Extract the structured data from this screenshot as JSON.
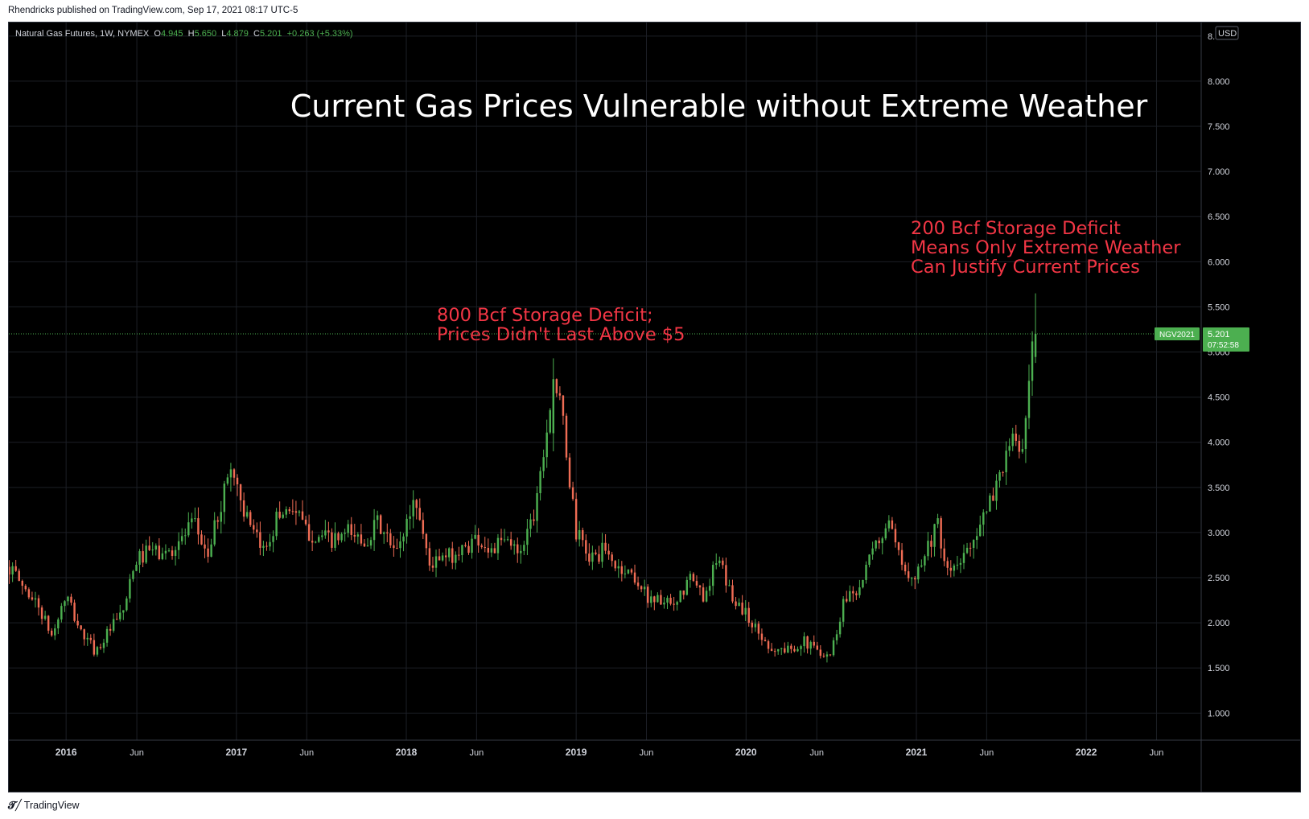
{
  "published_line": "Rhendricks published on TradingView.com, Sep 17, 2021 08:17 UTC-5",
  "footer": {
    "logo_icon": "tradingview-logo-icon",
    "label": "TradingView"
  },
  "legend": {
    "symbol": "Natural Gas Futures, 1W, NYMEX",
    "o_label": "O",
    "o": "4.945",
    "h_label": "H",
    "h": "5.650",
    "l_label": "L",
    "l": "4.879",
    "c_label": "C",
    "c": "5.201",
    "change": "+0.263 (+5.33%)"
  },
  "colors": {
    "background": "#000000",
    "grid": "#1c1f26",
    "up": "#4caf50",
    "down": "#ef6c54",
    "annotation": "#f23645",
    "price_label": "#4caf50",
    "title": "#ffffff"
  },
  "chart_data": {
    "type": "candlestick",
    "title": "Current Gas Prices Vulnerable without Extreme Weather",
    "symbol": "Natural Gas Futures, 1W, NYMEX",
    "currency": "USD",
    "x_tick_labels": [
      "2016",
      "Jun",
      "2017",
      "Jun",
      "2018",
      "Jun",
      "2019",
      "Jun",
      "2020",
      "Jun",
      "2021",
      "Jun",
      "2022",
      "Jun"
    ],
    "x_ticks": [
      {
        "label": "2016",
        "date": "2016-01-01"
      },
      {
        "label": "Jun",
        "date": "2016-06-01"
      },
      {
        "label": "2017",
        "date": "2017-01-01"
      },
      {
        "label": "Jun",
        "date": "2017-06-01"
      },
      {
        "label": "2018",
        "date": "2018-01-01"
      },
      {
        "label": "Jun",
        "date": "2018-06-01"
      },
      {
        "label": "2019",
        "date": "2019-01-01"
      },
      {
        "label": "Jun",
        "date": "2019-06-01"
      },
      {
        "label": "2020",
        "date": "2020-01-01"
      },
      {
        "label": "Jun",
        "date": "2020-06-01"
      },
      {
        "label": "2021",
        "date": "2021-01-01"
      },
      {
        "label": "Jun",
        "date": "2021-06-01"
      },
      {
        "label": "2022",
        "date": "2022-01-01"
      },
      {
        "label": "Jun",
        "date": "2022-06-01"
      }
    ],
    "x_range": [
      "2015-08-31",
      "2022-09-05"
    ],
    "y_tick_labels": [
      "1.000",
      "1.500",
      "2.000",
      "2.500",
      "3.000",
      "3.500",
      "4.000",
      "4.500",
      "5.000",
      "5.500",
      "6.000",
      "6.500",
      "7.000",
      "7.500",
      "8.000",
      "8."
    ],
    "y_ticks": [
      1.0,
      1.5,
      2.0,
      2.5,
      3.0,
      3.5,
      4.0,
      4.5,
      5.0,
      5.5,
      6.0,
      6.5,
      7.0,
      7.5,
      8.0,
      8.5
    ],
    "ylim": [
      0.7,
      8.65
    ],
    "grid": true,
    "last_price": {
      "symbol_tag": "NGV2021",
      "price": "5.201",
      "countdown": "07:52:58",
      "value": 5.201
    },
    "anchors": [
      {
        "date": "2015-09-01",
        "close": 2.62
      },
      {
        "date": "2015-10-01",
        "close": 2.4
      },
      {
        "date": "2015-11-01",
        "close": 2.2
      },
      {
        "date": "2015-12-01",
        "close": 1.85
      },
      {
        "date": "2016-01-01",
        "close": 2.3
      },
      {
        "date": "2016-02-01",
        "close": 1.9
      },
      {
        "date": "2016-03-05",
        "close": 1.68
      },
      {
        "date": "2016-04-01",
        "close": 1.9
      },
      {
        "date": "2016-05-01",
        "close": 2.1
      },
      {
        "date": "2016-06-01",
        "close": 2.7
      },
      {
        "date": "2016-07-01",
        "close": 2.8
      },
      {
        "date": "2016-08-01",
        "close": 2.75
      },
      {
        "date": "2016-09-01",
        "close": 2.9
      },
      {
        "date": "2016-10-01",
        "close": 3.1
      },
      {
        "date": "2016-11-01",
        "close": 2.75
      },
      {
        "date": "2016-12-20",
        "close": 3.75
      },
      {
        "date": "2017-02-01",
        "close": 3.0
      },
      {
        "date": "2017-03-01",
        "close": 2.8
      },
      {
        "date": "2017-04-01",
        "close": 3.2
      },
      {
        "date": "2017-05-01",
        "close": 3.3
      },
      {
        "date": "2017-06-01",
        "close": 3.0
      },
      {
        "date": "2017-07-01",
        "close": 2.95
      },
      {
        "date": "2017-08-01",
        "close": 2.9
      },
      {
        "date": "2017-09-01",
        "close": 3.0
      },
      {
        "date": "2017-10-01",
        "close": 2.9
      },
      {
        "date": "2017-11-01",
        "close": 3.1
      },
      {
        "date": "2017-12-10",
        "close": 2.75
      },
      {
        "date": "2018-01-20",
        "close": 3.4
      },
      {
        "date": "2018-02-20",
        "close": 2.65
      },
      {
        "date": "2018-03-20",
        "close": 2.7
      },
      {
        "date": "2018-05-01",
        "close": 2.8
      },
      {
        "date": "2018-06-01",
        "close": 2.95
      },
      {
        "date": "2018-07-01",
        "close": 2.8
      },
      {
        "date": "2018-08-01",
        "close": 2.9
      },
      {
        "date": "2018-09-01",
        "close": 2.8
      },
      {
        "date": "2018-10-01",
        "close": 3.2
      },
      {
        "date": "2018-11-14",
        "close": 4.7
      },
      {
        "date": "2018-12-01",
        "close": 4.3
      },
      {
        "date": "2019-01-01",
        "close": 3.0
      },
      {
        "date": "2019-02-01",
        "close": 2.7
      },
      {
        "date": "2019-03-01",
        "close": 2.8
      },
      {
        "date": "2019-04-01",
        "close": 2.6
      },
      {
        "date": "2019-05-01",
        "close": 2.55
      },
      {
        "date": "2019-06-01",
        "close": 2.3
      },
      {
        "date": "2019-07-01",
        "close": 2.25
      },
      {
        "date": "2019-08-01",
        "close": 2.15
      },
      {
        "date": "2019-09-01",
        "close": 2.5
      },
      {
        "date": "2019-10-01",
        "close": 2.3
      },
      {
        "date": "2019-11-01",
        "close": 2.7
      },
      {
        "date": "2019-12-01",
        "close": 2.3
      },
      {
        "date": "2020-01-01",
        "close": 2.1
      },
      {
        "date": "2020-02-01",
        "close": 1.85
      },
      {
        "date": "2020-03-01",
        "close": 1.7
      },
      {
        "date": "2020-04-01",
        "close": 1.7
      },
      {
        "date": "2020-05-01",
        "close": 1.8
      },
      {
        "date": "2020-06-01",
        "close": 1.7
      },
      {
        "date": "2020-07-01",
        "close": 1.65
      },
      {
        "date": "2020-08-01",
        "close": 2.3
      },
      {
        "date": "2020-09-01",
        "close": 2.4
      },
      {
        "date": "2020-10-01",
        "close": 2.8
      },
      {
        "date": "2020-11-01",
        "close": 3.1
      },
      {
        "date": "2020-12-01",
        "close": 2.6
      },
      {
        "date": "2021-01-01",
        "close": 2.55
      },
      {
        "date": "2021-02-15",
        "close": 3.1
      },
      {
        "date": "2021-03-01",
        "close": 2.6
      },
      {
        "date": "2021-04-01",
        "close": 2.6
      },
      {
        "date": "2021-05-01",
        "close": 2.95
      },
      {
        "date": "2021-06-01",
        "close": 3.2
      },
      {
        "date": "2021-07-01",
        "close": 3.7
      },
      {
        "date": "2021-08-01",
        "close": 4.05
      },
      {
        "date": "2021-08-20",
        "close": 3.85
      },
      {
        "date": "2021-09-01",
        "close": 4.7
      },
      {
        "date": "2021-09-13",
        "close": 5.201
      }
    ],
    "key_candles": [
      {
        "date": "2018-11-12",
        "open": 4.1,
        "high": 4.93,
        "low": 3.9,
        "close": 4.7
      },
      {
        "date": "2021-09-13",
        "open": 4.945,
        "high": 5.65,
        "low": 4.879,
        "close": 5.201
      }
    ],
    "annotations": [
      {
        "lines": [
          "800 Bcf Storage Deficit;",
          "Prices Didn't Last Above $5"
        ]
      },
      {
        "lines": [
          "200 Bcf Storage Deficit",
          "Means Only Extreme Weather",
          "Can Justify Current Prices"
        ]
      }
    ]
  }
}
